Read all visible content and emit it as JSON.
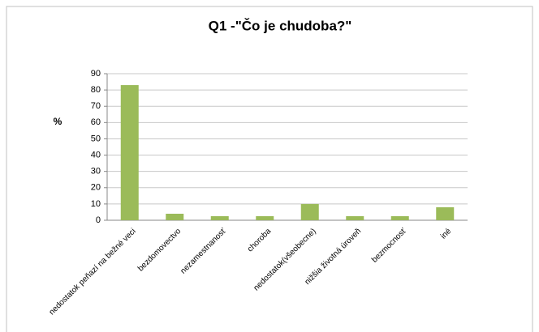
{
  "chart_data": {
    "type": "bar",
    "title": "Q1 -\"Čo je chudoba?\"",
    "y_label": "%",
    "categories": [
      "nedostatok peňazí na bežné veci",
      "bezdomovectvo",
      "nezamestnanosť",
      "choroba",
      "nedostatok(všeobecne)",
      "nižšia životná úroveň",
      "bezmocnosť",
      "iné"
    ],
    "values": [
      83,
      4,
      2.5,
      2.5,
      10,
      2.5,
      2.5,
      8
    ],
    "color": "#9bbb59",
    "ylim": [
      0,
      90
    ],
    "yticks": [
      0,
      10,
      20,
      30,
      40,
      50,
      60,
      70,
      80,
      90
    ],
    "grid": true
  }
}
